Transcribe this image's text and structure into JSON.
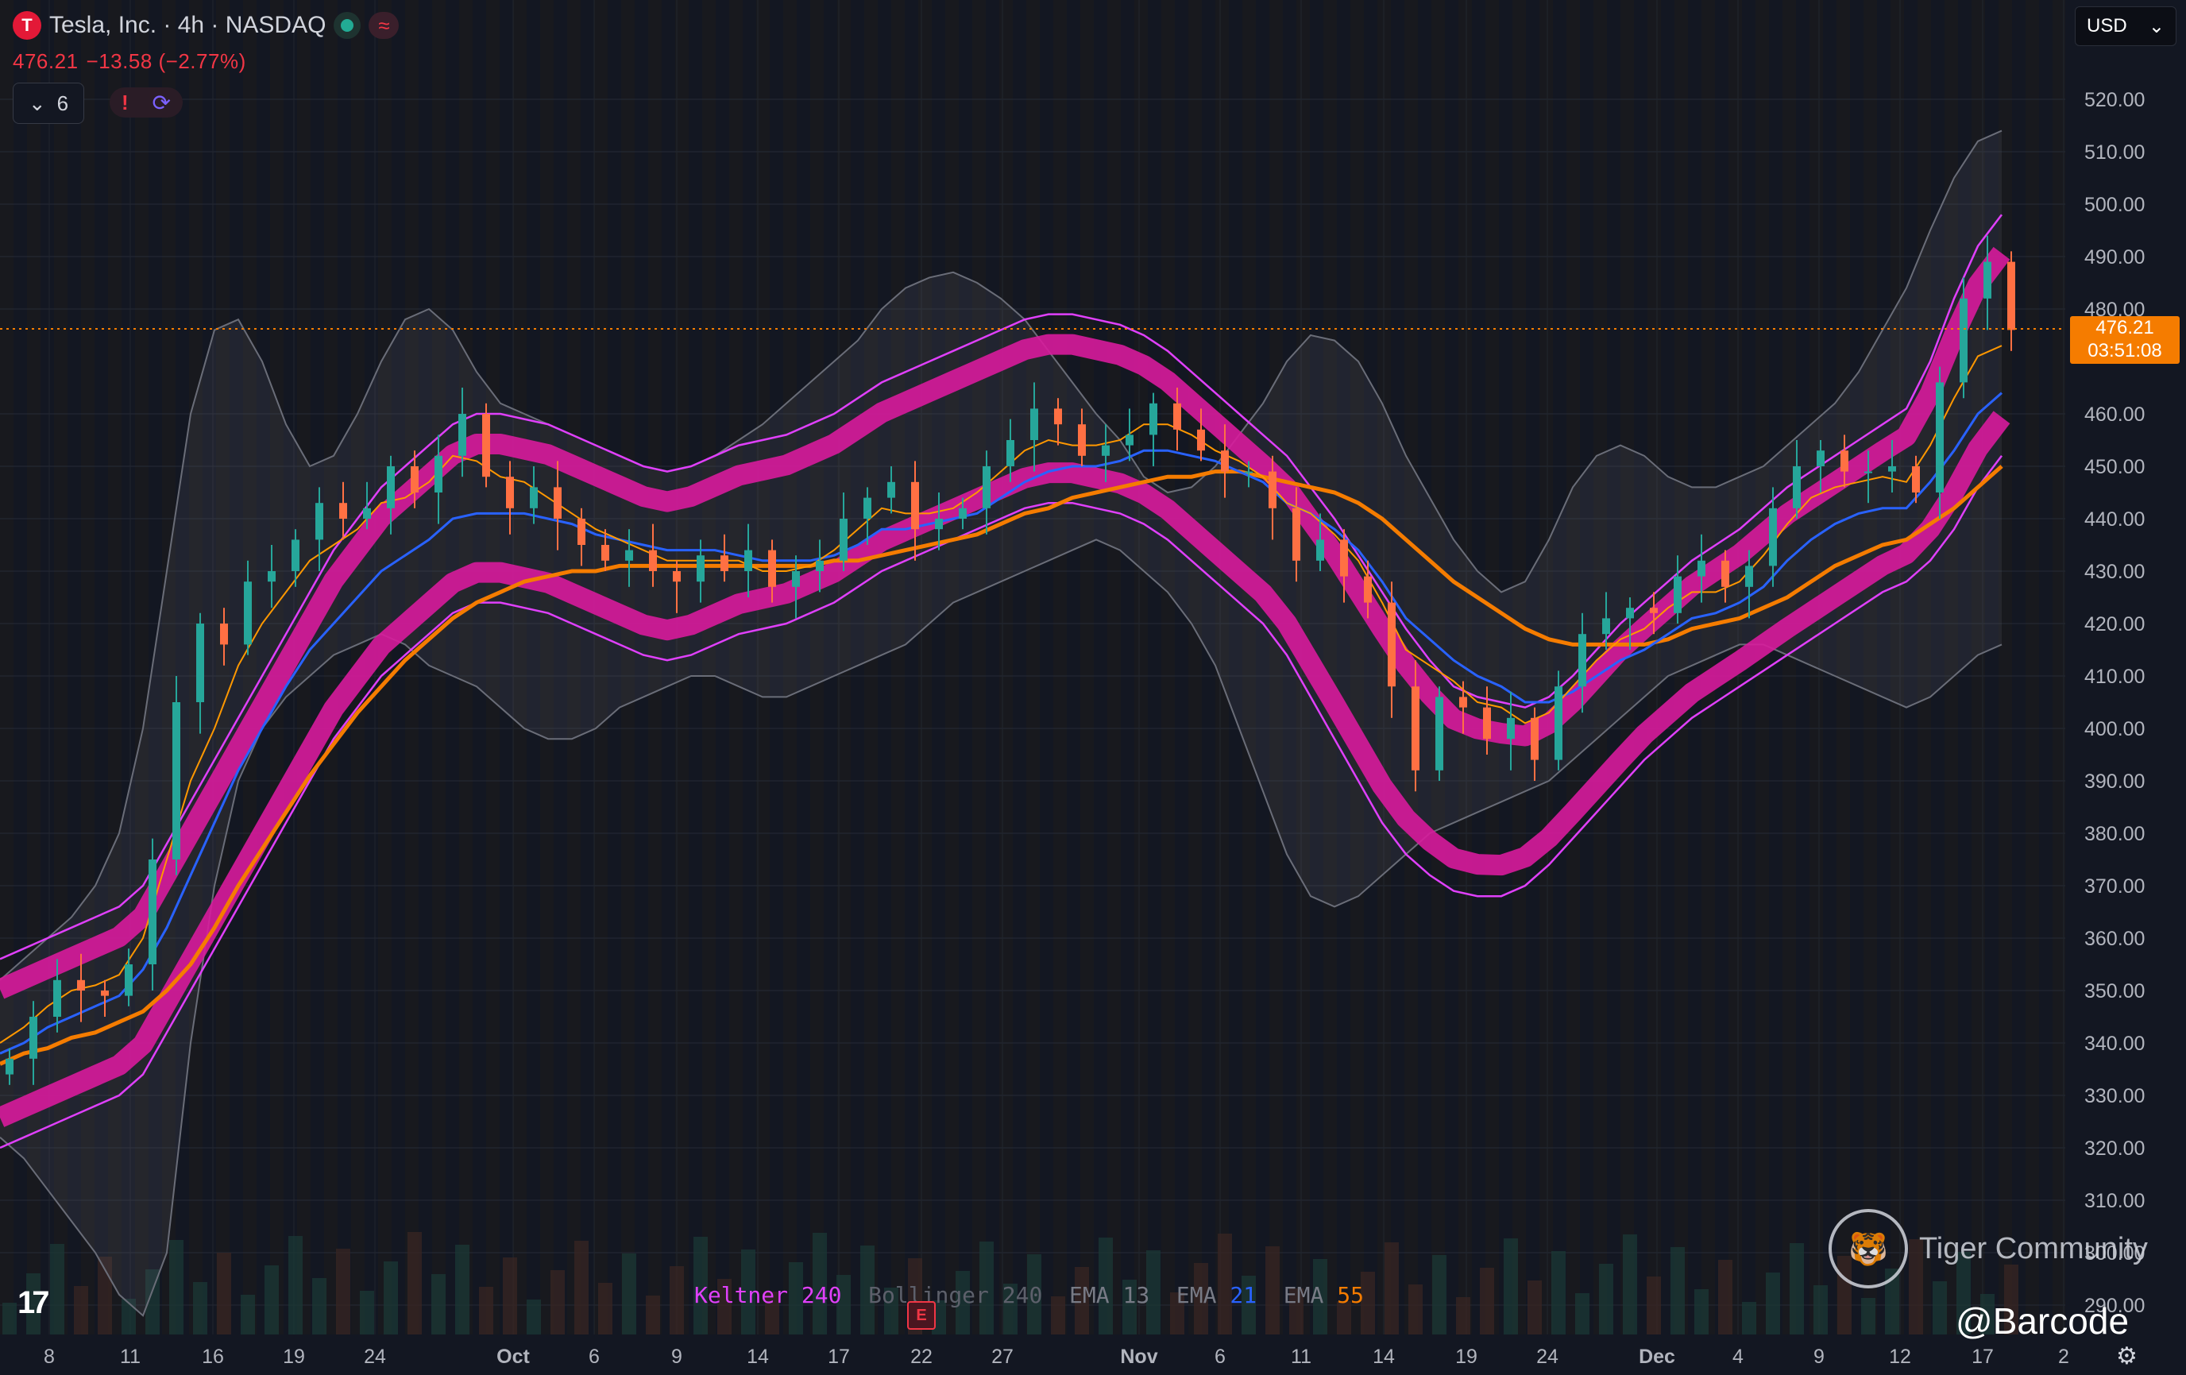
{
  "header": {
    "title": "Tesla, Inc. · 4h · NASDAQ",
    "logo_letter": "T",
    "price": "476.21",
    "change": "−13.58 (−2.77%)",
    "indicator_count": "6"
  },
  "currency": "USD",
  "last_price_tag": {
    "price": "476.21",
    "countdown": "03:51:08"
  },
  "legend": [
    {
      "label": "Keltner",
      "value": "240",
      "color": "#e040fb"
    },
    {
      "label": "Bollinger",
      "value": "240",
      "color": "#5d606b"
    },
    {
      "label": "EMA",
      "value": "13",
      "color": "#787b86"
    },
    {
      "label": "EMA",
      "value": "21",
      "color": "#2962ff"
    },
    {
      "label": "EMA",
      "value": "55",
      "color": "#f57c00"
    }
  ],
  "watermarks": {
    "tradingview": "17",
    "community": "Tiger Community",
    "handle": "@Barcode"
  },
  "earnings_marker": "E",
  "colors": {
    "up": "#26a69a",
    "down": "#ff7043",
    "keltner": "#e040fb",
    "ema13": "#ff9800",
    "ema21": "#2962ff",
    "ema55": "#f57c00",
    "price_line": "#f57c00"
  },
  "chart_data": {
    "type": "line",
    "ylim": [
      285,
      527
    ],
    "y_ticks": [
      520,
      510,
      500,
      490,
      480,
      460,
      450,
      440,
      430,
      420,
      410,
      400,
      390,
      380,
      370,
      360,
      350,
      340,
      330,
      320,
      310,
      300,
      290
    ],
    "y_tick_labels": [
      "520.00",
      "510.00",
      "500.00",
      "490.00",
      "480.00",
      "460.00",
      "450.00",
      "440.00",
      "430.00",
      "420.00",
      "410.00",
      "400.00",
      "390.00",
      "380.00",
      "370.00",
      "360.00",
      "350.00",
      "340.00",
      "330.00",
      "320.00",
      "310.00",
      "300.00",
      "290.00"
    ],
    "x_ticks": [
      "8",
      "11",
      "16",
      "19",
      "24",
      "Oct",
      "6",
      "9",
      "14",
      "17",
      "22",
      "27",
      "Nov",
      "6",
      "11",
      "14",
      "19",
      "24",
      "Dec",
      "4",
      "9",
      "12",
      "17",
      "2"
    ],
    "x": [
      0,
      30,
      60,
      90,
      120,
      150,
      180,
      210,
      240,
      270,
      300,
      330,
      360,
      390,
      420,
      450,
      480,
      510,
      540,
      570,
      600,
      630,
      660,
      690,
      720,
      750,
      780,
      810,
      840,
      870,
      900,
      930,
      960,
      990,
      1020,
      1050,
      1080,
      1110,
      1140,
      1170,
      1200,
      1230,
      1260,
      1290,
      1320,
      1350,
      1380,
      1410,
      1440,
      1470,
      1500,
      1530,
      1560,
      1590,
      1620,
      1650,
      1680,
      1710,
      1740,
      1770,
      1800,
      1830,
      1860,
      1890,
      1920,
      1950,
      1980,
      2010,
      2040,
      2070,
      2100,
      2130,
      2160,
      2190,
      2220,
      2250,
      2280,
      2310,
      2340,
      2370,
      2400,
      2430,
      2460,
      2490,
      2520
    ],
    "close": [
      337,
      345,
      352,
      350,
      349,
      355,
      375,
      405,
      420,
      416,
      428,
      430,
      436,
      443,
      440,
      442,
      450,
      445,
      452,
      460,
      448,
      442,
      446,
      440,
      435,
      432,
      434,
      430,
      428,
      433,
      430,
      434,
      427,
      430,
      432,
      440,
      444,
      447,
      438,
      440,
      442,
      450,
      455,
      461,
      458,
      452,
      454,
      456,
      462,
      457,
      453,
      449,
      449,
      442,
      432,
      436,
      429,
      424,
      408,
      392,
      406,
      404,
      398,
      402,
      394,
      408,
      418,
      421,
      423,
      422,
      429,
      432,
      427,
      431,
      442,
      450,
      453,
      449,
      449,
      450,
      445,
      466,
      482,
      489,
      476
    ],
    "series": [
      {
        "name": "EMA 13",
        "values": [
          340,
          343,
          347,
          350,
          351,
          353,
          360,
          375,
          390,
          400,
          412,
          420,
          426,
          432,
          435,
          438,
          443,
          444,
          447,
          452,
          451,
          448,
          447,
          444,
          441,
          438,
          436,
          434,
          432,
          432,
          432,
          432,
          430,
          430,
          431,
          434,
          438,
          442,
          441,
          441,
          442,
          445,
          449,
          453,
          455,
          454,
          454,
          455,
          458,
          458,
          456,
          453,
          451,
          448,
          443,
          441,
          437,
          432,
          424,
          415,
          412,
          409,
          405,
          404,
          401,
          403,
          408,
          413,
          417,
          419,
          423,
          426,
          426,
          428,
          433,
          439,
          444,
          446,
          447,
          448,
          447,
          454,
          463,
          471,
          473
        ]
      },
      {
        "name": "EMA 21",
        "values": [
          338,
          340,
          343,
          345,
          347,
          349,
          354,
          362,
          372,
          382,
          392,
          400,
          408,
          415,
          420,
          425,
          430,
          433,
          436,
          440,
          441,
          441,
          441,
          440,
          439,
          437,
          436,
          435,
          434,
          434,
          434,
          433,
          432,
          432,
          432,
          433,
          435,
          438,
          438,
          439,
          440,
          441,
          444,
          447,
          449,
          450,
          450,
          451,
          453,
          453,
          452,
          451,
          449,
          447,
          443,
          441,
          438,
          434,
          428,
          421,
          417,
          413,
          410,
          408,
          405,
          405,
          407,
          410,
          413,
          415,
          418,
          421,
          422,
          424,
          427,
          432,
          436,
          439,
          441,
          442,
          442,
          447,
          453,
          460,
          464
        ]
      },
      {
        "name": "EMA 55",
        "values": [
          336,
          338,
          339,
          341,
          342,
          344,
          346,
          350,
          355,
          362,
          370,
          377,
          384,
          391,
          397,
          403,
          408,
          413,
          417,
          421,
          424,
          426,
          428,
          429,
          430,
          430,
          431,
          431,
          431,
          431,
          431,
          431,
          431,
          431,
          431,
          432,
          432,
          433,
          434,
          435,
          436,
          437,
          439,
          441,
          442,
          444,
          445,
          446,
          447,
          448,
          448,
          449,
          449,
          448,
          447,
          446,
          445,
          443,
          440,
          436,
          432,
          428,
          425,
          422,
          419,
          417,
          416,
          416,
          416,
          416,
          417,
          419,
          420,
          421,
          423,
          425,
          428,
          431,
          433,
          435,
          436,
          439,
          442,
          446,
          450
        ]
      },
      {
        "name": "Keltner upper",
        "values": [
          356,
          358,
          360,
          362,
          364,
          366,
          370,
          378,
          386,
          394,
          402,
          410,
          418,
          426,
          434,
          440,
          446,
          450,
          454,
          458,
          460,
          460,
          459,
          458,
          456,
          454,
          452,
          450,
          449,
          450,
          452,
          454,
          455,
          456,
          458,
          460,
          463,
          466,
          468,
          470,
          472,
          474,
          476,
          478,
          479,
          479,
          478,
          477,
          475,
          472,
          468,
          464,
          460,
          456,
          452,
          446,
          440,
          433,
          426,
          419,
          413,
          408,
          406,
          405,
          404,
          406,
          410,
          415,
          420,
          424,
          428,
          432,
          435,
          438,
          442,
          446,
          449,
          452,
          455,
          458,
          461,
          470,
          482,
          492,
          498
        ]
      },
      {
        "name": "Keltner lower",
        "values": [
          320,
          322,
          324,
          326,
          328,
          330,
          334,
          342,
          350,
          358,
          366,
          374,
          382,
          390,
          398,
          404,
          410,
          414,
          418,
          422,
          424,
          424,
          423,
          422,
          420,
          418,
          416,
          414,
          413,
          414,
          416,
          418,
          419,
          420,
          422,
          424,
          427,
          430,
          432,
          434,
          436,
          438,
          440,
          442,
          443,
          443,
          442,
          441,
          439,
          436,
          432,
          428,
          424,
          420,
          414,
          406,
          398,
          390,
          382,
          376,
          372,
          369,
          368,
          368,
          370,
          374,
          379,
          384,
          389,
          394,
          398,
          402,
          405,
          408,
          411,
          414,
          417,
          420,
          423,
          426,
          428,
          432,
          438,
          446,
          452
        ]
      },
      {
        "name": "Bollinger upper",
        "values": [
          352,
          356,
          360,
          364,
          370,
          380,
          400,
          430,
          460,
          476,
          478,
          470,
          458,
          450,
          452,
          460,
          470,
          478,
          480,
          476,
          468,
          462,
          460,
          458,
          456,
          454,
          452,
          450,
          449,
          450,
          452,
          455,
          458,
          462,
          466,
          470,
          474,
          480,
          484,
          486,
          487,
          485,
          482,
          478,
          472,
          466,
          460,
          455,
          448,
          445,
          446,
          450,
          456,
          462,
          470,
          475,
          474,
          470,
          462,
          452,
          444,
          436,
          430,
          426,
          428,
          436,
          446,
          452,
          454,
          452,
          448,
          446,
          446,
          448,
          450,
          454,
          458,
          462,
          468,
          476,
          484,
          495,
          505,
          512,
          514
        ]
      },
      {
        "name": "Bollinger lower",
        "values": [
          322,
          318,
          312,
          306,
          300,
          292,
          288,
          300,
          340,
          370,
          390,
          400,
          406,
          410,
          414,
          416,
          418,
          416,
          412,
          410,
          408,
          404,
          400,
          398,
          398,
          400,
          404,
          406,
          408,
          410,
          410,
          408,
          406,
          406,
          408,
          410,
          412,
          414,
          416,
          420,
          424,
          426,
          428,
          430,
          432,
          434,
          436,
          434,
          430,
          426,
          420,
          412,
          400,
          388,
          376,
          368,
          366,
          368,
          372,
          376,
          380,
          382,
          384,
          386,
          388,
          390,
          394,
          398,
          402,
          406,
          410,
          412,
          414,
          416,
          416,
          414,
          412,
          410,
          408,
          406,
          404,
          406,
          410,
          414,
          416
        ]
      }
    ]
  }
}
